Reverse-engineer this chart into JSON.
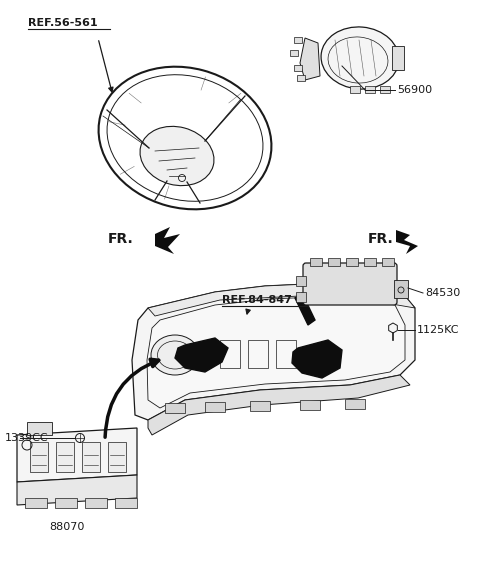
{
  "background_color": "#ffffff",
  "fig_width": 4.8,
  "fig_height": 5.73,
  "dpi": 100,
  "labels": {
    "ref_56_561": "REF.56-561",
    "ref_84_847": "REF.84-847",
    "part_56900": "56900",
    "part_84530": "84530",
    "part_1125KC": "1125KC",
    "part_1339CC": "1339CC",
    "part_88070": "88070",
    "fr_left": "FR.",
    "fr_right": "FR."
  },
  "colors": {
    "line": "#1a1a1a",
    "fill_dark": "#0d0d0d",
    "text": "#1a1a1a",
    "bg": "#ffffff",
    "part_fill": "#f5f5f5",
    "part_gray": "#e0e0e0"
  }
}
